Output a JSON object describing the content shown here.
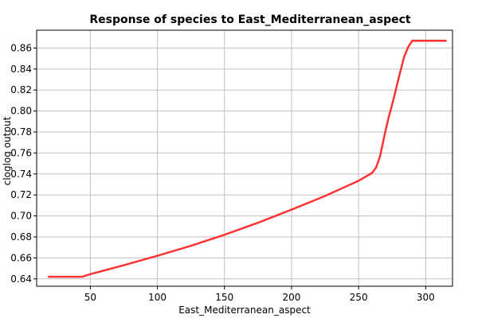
{
  "colors": {
    "background": "#ffffff",
    "grid": "#c0c0c0",
    "axis": "#000000",
    "series": "#ff3333"
  },
  "chart_data": {
    "type": "line",
    "title": "Response of species to East_Mediterranean_aspect",
    "xlabel": "East_Mediterranean_aspect",
    "ylabel": "cloglog output",
    "xlim": [
      10,
      320
    ],
    "ylim": [
      0.633,
      0.877
    ],
    "grid": true,
    "xticks": [
      50,
      100,
      150,
      200,
      250,
      300
    ],
    "yticks": [
      0.64,
      0.66,
      0.68,
      0.7,
      0.72,
      0.74,
      0.76,
      0.78,
      0.8,
      0.82,
      0.84,
      0.86
    ],
    "xtick_labels": [
      "50",
      "100",
      "150",
      "200",
      "250",
      "300"
    ],
    "ytick_labels": [
      "0.64",
      "0.66",
      "0.68",
      "0.70",
      "0.72",
      "0.74",
      "0.76",
      "0.78",
      "0.80",
      "0.82",
      "0.84",
      "0.86"
    ],
    "series": [
      {
        "x": [
          19,
          44,
          50,
          75,
          100,
          125,
          150,
          175,
          200,
          225,
          250,
          260,
          263,
          266,
          269,
          272,
          276,
          280,
          284,
          287,
          290,
          300,
          315
        ],
        "values": [
          0.642,
          0.642,
          0.6445,
          0.653,
          0.662,
          0.6715,
          0.682,
          0.6935,
          0.706,
          0.719,
          0.7335,
          0.741,
          0.746,
          0.757,
          0.775,
          0.792,
          0.811,
          0.832,
          0.852,
          0.861,
          0.867,
          0.867,
          0.867
        ]
      }
    ]
  }
}
